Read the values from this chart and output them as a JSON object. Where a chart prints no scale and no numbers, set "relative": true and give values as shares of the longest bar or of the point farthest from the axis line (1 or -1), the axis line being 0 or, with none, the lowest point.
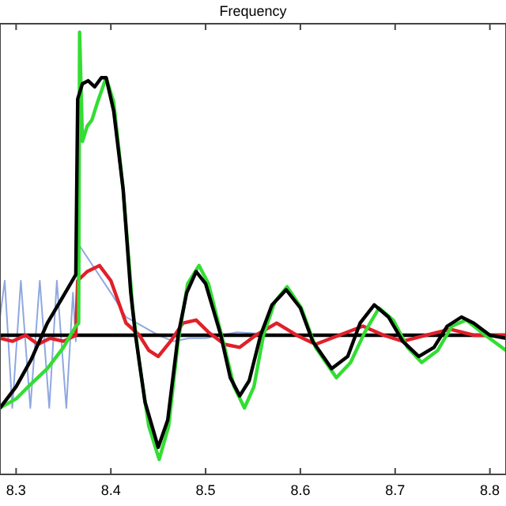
{
  "chart_data": {
    "type": "line",
    "title": "Frequency",
    "relative": true,
    "xlim": [
      8.283,
      8.817
    ],
    "xticks": [
      8.3,
      8.4,
      8.5,
      8.6,
      8.7,
      8.8
    ],
    "grid": false,
    "marker": "none",
    "line_style": "solid",
    "series": [
      {
        "color": "#8fa8e0",
        "x": [
          8.283,
          8.288,
          8.296,
          8.305,
          8.315,
          8.325,
          8.335,
          8.343,
          8.353,
          8.36,
          8.363,
          8.366,
          8.383,
          8.4,
          8.416,
          8.433,
          8.45,
          8.466,
          8.483,
          8.5,
          8.533,
          8.583,
          8.65,
          8.817
        ],
        "values": [
          0.06,
          0.18,
          -0.24,
          0.18,
          -0.24,
          0.18,
          -0.24,
          0.18,
          -0.24,
          0.14,
          -0.02,
          0.3,
          0.22,
          0.14,
          0.06,
          0.03,
          0,
          -0.02,
          -0.01,
          -0.01,
          0.01,
          0,
          0,
          0
        ]
      },
      {
        "color": "#000000",
        "x": [
          8.283,
          8.817
        ],
        "values": [
          0,
          0
        ]
      },
      {
        "color": "#e0202a",
        "x": [
          8.283,
          8.296,
          8.31,
          8.323,
          8.336,
          8.35,
          8.363,
          8.365,
          8.375,
          8.388,
          8.4,
          8.416,
          8.43,
          8.44,
          8.45,
          8.463,
          8.476,
          8.49,
          8.503,
          8.52,
          8.536,
          8.553,
          8.575,
          8.596,
          8.616,
          8.641,
          8.666,
          8.688,
          8.708,
          8.733,
          8.758,
          8.783,
          8.817
        ],
        "values": [
          -0.01,
          -0.02,
          0,
          -0.03,
          -0.01,
          -0.02,
          0,
          0.18,
          0.21,
          0.23,
          0.18,
          0.04,
          0,
          -0.05,
          -0.07,
          -0.02,
          0.04,
          0.05,
          0.01,
          -0.03,
          -0.04,
          0,
          0.04,
          0,
          -0.03,
          0,
          0.03,
          0,
          -0.02,
          0,
          0.02,
          0,
          0
        ]
      },
      {
        "color": "#33dd33",
        "x": [
          8.283,
          8.3,
          8.316,
          8.333,
          8.35,
          8.363,
          8.366,
          8.367,
          8.37,
          8.375,
          8.38,
          8.386,
          8.395,
          8.403,
          8.413,
          8.423,
          8.43,
          8.44,
          8.451,
          8.461,
          8.471,
          8.481,
          8.493,
          8.503,
          8.52,
          8.53,
          8.541,
          8.551,
          8.561,
          8.573,
          8.586,
          8.601,
          8.616,
          8.638,
          8.653,
          8.668,
          8.683,
          8.698,
          8.713,
          8.728,
          8.745,
          8.76,
          8.775,
          8.791,
          8.817
        ],
        "values": [
          -0.24,
          -0.21,
          -0.16,
          -0.11,
          -0.04,
          0.03,
          0.04,
          1,
          0.64,
          0.69,
          0.71,
          0.77,
          0.85,
          0.77,
          0.48,
          0.09,
          -0.09,
          -0.3,
          -0.41,
          -0.3,
          -0.02,
          0.17,
          0.23,
          0.17,
          -0.04,
          -0.17,
          -0.24,
          -0.17,
          0,
          0.11,
          0.16,
          0.09,
          -0.04,
          -0.14,
          -0.09,
          0.01,
          0.09,
          0.05,
          -0.04,
          -0.09,
          -0.05,
          0.03,
          0.05,
          0.01,
          -0.05
        ]
      },
      {
        "color": "#000000",
        "x": [
          8.283,
          8.3,
          8.316,
          8.333,
          8.35,
          8.363,
          8.365,
          8.37,
          8.376,
          8.383,
          8.39,
          8.395,
          8.403,
          8.413,
          8.421,
          8.426,
          8.436,
          8.45,
          8.46,
          8.471,
          8.48,
          8.49,
          8.5,
          8.516,
          8.526,
          8.536,
          8.546,
          8.558,
          8.57,
          8.585,
          8.6,
          8.613,
          8.633,
          8.65,
          8.663,
          8.678,
          8.693,
          8.708,
          8.725,
          8.741,
          8.755,
          8.77,
          8.783,
          8.8,
          8.817
        ],
        "values": [
          -0.24,
          -0.17,
          -0.08,
          0.04,
          0.13,
          0.2,
          0.78,
          0.83,
          0.84,
          0.82,
          0.85,
          0.85,
          0.74,
          0.48,
          0.14,
          0,
          -0.22,
          -0.37,
          -0.28,
          0,
          0.14,
          0.21,
          0.17,
          0,
          -0.14,
          -0.2,
          -0.15,
          0,
          0.1,
          0.15,
          0.09,
          -0.02,
          -0.11,
          -0.07,
          0.04,
          0.1,
          0.06,
          -0.02,
          -0.07,
          -0.04,
          0.03,
          0.06,
          0.04,
          0,
          -0.01
        ]
      }
    ]
  }
}
